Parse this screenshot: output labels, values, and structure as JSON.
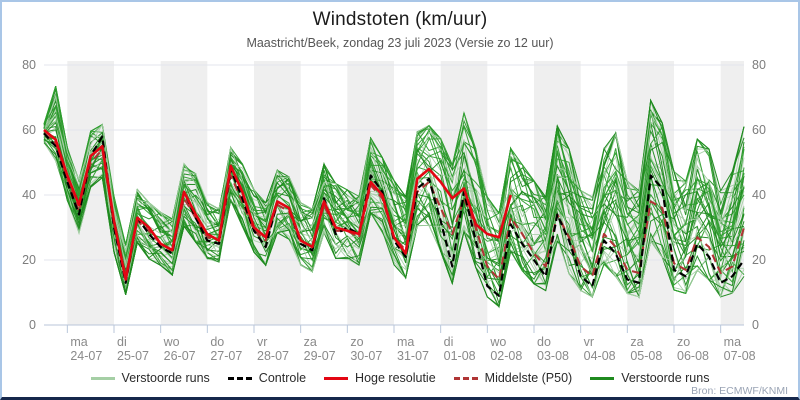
{
  "header": {
    "title": "Windstoten (km/uur)",
    "subtitle": "Maastricht/Beek, zondag 23 juli 2023 (Versie zo 12 uur)"
  },
  "source_label": "Bron: ECMWF/KNMI",
  "chart_data": {
    "type": "line",
    "title": "Windstoten (km/uur)",
    "subtitle": "Maastricht/Beek, zondag 23 juli 2023 (Versie zo 12 uur)",
    "ylabel": "km/uur",
    "ylim": [
      0,
      80
    ],
    "y_ticks": [
      0,
      20,
      40,
      60,
      80
    ],
    "y_axis_mirrored": true,
    "grid": true,
    "timestep_hours": 6,
    "start_label": "zo 23-07 12:00",
    "x_days": [
      {
        "dow": "ma",
        "date": "24-07"
      },
      {
        "dow": "di",
        "date": "25-07"
      },
      {
        "dow": "wo",
        "date": "26-07"
      },
      {
        "dow": "do",
        "date": "27-07"
      },
      {
        "dow": "vr",
        "date": "28-07"
      },
      {
        "dow": "za",
        "date": "29-07"
      },
      {
        "dow": "zo",
        "date": "30-07"
      },
      {
        "dow": "ma",
        "date": "31-07"
      },
      {
        "dow": "di",
        "date": "01-08"
      },
      {
        "dow": "wo",
        "date": "02-08"
      },
      {
        "dow": "do",
        "date": "03-08"
      },
      {
        "dow": "vr",
        "date": "04-08"
      },
      {
        "dow": "za",
        "date": "05-08"
      },
      {
        "dow": "zo",
        "date": "06-08"
      },
      {
        "dow": "ma",
        "date": "07-08"
      }
    ],
    "series": [
      {
        "name": "Controle",
        "color": "#000000",
        "dash": "7,4",
        "width": 2.2,
        "values": [
          59,
          55,
          44,
          34,
          52,
          58,
          30,
          13,
          33,
          28,
          24,
          22,
          41,
          33,
          26,
          25,
          48,
          39,
          29,
          24,
          38,
          36,
          25,
          23,
          39,
          28,
          30,
          28,
          46,
          41,
          26,
          21,
          42,
          45,
          32,
          18,
          41,
          26,
          12,
          9,
          31,
          25,
          20,
          15,
          34,
          26,
          15,
          12,
          26,
          22,
          14,
          13,
          46,
          42,
          17,
          15,
          25,
          21,
          13,
          15,
          20
        ]
      },
      {
        "name": "Hoge resolutie",
        "color": "#e30613",
        "dash": null,
        "width": 2.6,
        "values": [
          60,
          57,
          46,
          37,
          52,
          55,
          32,
          14,
          33,
          30,
          25,
          23,
          41,
          34,
          28,
          26,
          49,
          41,
          30,
          27,
          38,
          36,
          26,
          24,
          38,
          30,
          29,
          28,
          44,
          40,
          27,
          22,
          45,
          48,
          44,
          39,
          42,
          31,
          28,
          27,
          40
        ]
      },
      {
        "name": "Middelste (P50)",
        "color": "#b03535",
        "dash": "8,5",
        "width": 2.1,
        "values": [
          59,
          56,
          45,
          35,
          50,
          54,
          31,
          15,
          32,
          29,
          25,
          23,
          39,
          33,
          27,
          26,
          46,
          38,
          29,
          26,
          37,
          35,
          26,
          24,
          37,
          29,
          29,
          27,
          43,
          39,
          27,
          23,
          41,
          44,
          36,
          28,
          39,
          30,
          18,
          14,
          33,
          28,
          22,
          18,
          34,
          27,
          18,
          15,
          28,
          24,
          17,
          16,
          38,
          36,
          19,
          17,
          27,
          24,
          16,
          18,
          30
        ]
      }
    ],
    "ensemble": {
      "name": "Verstoorde runs",
      "member_count": 48,
      "colors": [
        "#a5cfa5",
        "#2e9e2e",
        "#1f8a1f"
      ],
      "envelope_max": [
        62,
        74,
        55,
        45,
        60,
        62,
        40,
        25,
        42,
        38,
        35,
        33,
        50,
        47,
        38,
        36,
        55,
        50,
        42,
        38,
        48,
        46,
        38,
        36,
        50,
        44,
        42,
        40,
        58,
        52,
        45,
        40,
        60,
        62,
        58,
        50,
        66,
        55,
        40,
        35,
        55,
        50,
        45,
        40,
        62,
        55,
        42,
        40,
        55,
        60,
        45,
        42,
        70,
        63,
        48,
        45,
        58,
        55,
        42,
        48,
        62
      ],
      "envelope_min": [
        56,
        50,
        38,
        28,
        42,
        45,
        22,
        9,
        25,
        20,
        18,
        15,
        30,
        25,
        20,
        19,
        38,
        30,
        22,
        18,
        28,
        26,
        18,
        16,
        28,
        20,
        20,
        18,
        34,
        28,
        18,
        14,
        30,
        30,
        22,
        12,
        28,
        17,
        8,
        5,
        22,
        16,
        12,
        10,
        25,
        15,
        10,
        8,
        18,
        14,
        9,
        8,
        25,
        20,
        10,
        9,
        16,
        13,
        8,
        9,
        14
      ]
    },
    "legend": [
      {
        "label": "Verstoorde runs",
        "color": "#a5cfa5",
        "dashed": false
      },
      {
        "label": "Controle",
        "color": "#000000",
        "dashed": true
      },
      {
        "label": "Hoge resolutie",
        "color": "#e30613",
        "dashed": false
      },
      {
        "label": "Middelste (P50)",
        "color": "#b03535",
        "dashed": true
      },
      {
        "label": "Verstoorde runs",
        "color": "#1f8a1f",
        "dashed": false
      }
    ],
    "band_color": "#efefef",
    "gridline_color": "#e3e6ec",
    "tick_color": "#b9c6da"
  }
}
